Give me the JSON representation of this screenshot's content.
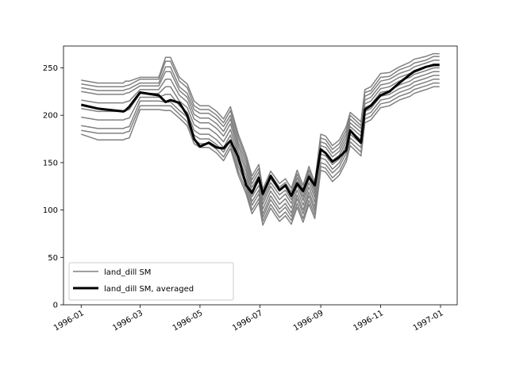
{
  "chart_data": {
    "type": "line",
    "title": "",
    "xlabel": "",
    "ylabel": "",
    "xlim": [
      "1995-12-14",
      "1997-01-18"
    ],
    "ylim": [
      0,
      273
    ],
    "grid": false,
    "legend_position": "lower-left",
    "x_ticks": [
      "1996-01",
      "1996-03",
      "1996-05",
      "1996-07",
      "1996-09",
      "1996-11",
      "1997-01"
    ],
    "y_ticks": [
      "0",
      "50",
      "100",
      "150",
      "200",
      "250"
    ],
    "member_color": "#808080",
    "average_color": "#000000",
    "x": [
      "1996-01-01",
      "1996-01-18",
      "1996-02-13",
      "1996-02-15",
      "1996-02-19",
      "1996-03-01",
      "1996-03-20",
      "1996-03-27",
      "1996-04-01",
      "1996-04-10",
      "1996-04-18",
      "1996-04-25",
      "1996-05-01",
      "1996-05-10",
      "1996-05-18",
      "1996-05-25",
      "1996-06-01",
      "1996-06-09",
      "1996-06-17",
      "1996-06-23",
      "1996-06-30",
      "1996-07-04",
      "1996-07-12",
      "1996-07-21",
      "1996-07-27",
      "1996-08-02",
      "1996-08-08",
      "1996-08-14",
      "1996-08-20",
      "1996-08-26",
      "1996-09-01",
      "1996-09-06",
      "1996-09-13",
      "1996-09-20",
      "1996-09-27",
      "1996-10-01",
      "1996-10-12",
      "1996-10-16",
      "1996-10-22",
      "1996-11-01",
      "1996-11-10",
      "1996-11-20",
      "1996-12-01",
      "1996-12-05",
      "1996-12-17",
      "1996-12-25",
      "1996-12-31"
    ],
    "series": [
      {
        "name": "land_dill SM",
        "values": [
          237,
          234,
          234,
          236,
          236,
          240,
          240,
          261,
          261,
          240,
          233,
          215,
          210,
          210,
          204,
          196,
          209,
          180,
          158,
          136,
          148,
          122,
          141,
          128,
          133,
          123,
          142,
          126,
          146,
          129,
          180,
          178,
          168,
          174,
          188,
          203,
          193,
          227,
          230,
          244,
          245,
          251,
          256,
          259,
          262,
          265,
          265
        ]
      },
      {
        "name": "",
        "values": [
          233,
          230,
          230,
          231,
          232,
          238,
          238,
          257,
          257,
          236,
          229,
          210,
          206,
          206,
          200,
          192,
          205,
          176,
          154,
          132,
          144,
          118,
          137,
          124,
          129,
          119,
          138,
          122,
          142,
          125,
          176,
          174,
          164,
          170,
          184,
          200,
          189,
          224,
          226,
          240,
          241,
          248,
          252,
          255,
          258,
          262,
          262
        ]
      },
      {
        "name": "",
        "values": [
          229,
          226,
          226,
          227,
          228,
          234,
          234,
          251,
          251,
          230,
          223,
          206,
          202,
          202,
          196,
          188,
          200,
          171,
          150,
          128,
          140,
          114,
          133,
          120,
          125,
          115,
          134,
          118,
          138,
          121,
          172,
          170,
          160,
          166,
          180,
          196,
          186,
          220,
          223,
          236,
          238,
          244,
          248,
          251,
          255,
          258,
          258
        ]
      },
      {
        "name": "",
        "values": [
          225,
          222,
          222,
          223,
          224,
          231,
          231,
          246,
          246,
          226,
          219,
          201,
          197,
          197,
          191,
          183,
          196,
          167,
          145,
          124,
          136,
          110,
          129,
          116,
          121,
          111,
          130,
          114,
          134,
          117,
          168,
          166,
          156,
          162,
          176,
          192,
          182,
          216,
          219,
          232,
          234,
          240,
          244,
          247,
          251,
          254,
          254
        ]
      },
      {
        "name": "",
        "values": [
          216,
          213,
          213,
          214,
          215,
          227,
          227,
          238,
          238,
          221,
          214,
          196,
          192,
          192,
          186,
          178,
          191,
          162,
          141,
          119,
          131,
          106,
          125,
          111,
          117,
          107,
          126,
          110,
          129,
          113,
          163,
          161,
          152,
          158,
          172,
          188,
          178,
          212,
          215,
          228,
          230,
          236,
          240,
          243,
          247,
          250,
          250
        ]
      },
      {
        "name": "",
        "values": [
          207,
          204,
          204,
          205,
          206,
          223,
          223,
          230,
          230,
          215,
          208,
          190,
          186,
          186,
          180,
          172,
          185,
          157,
          136,
          114,
          126,
          101,
          120,
          106,
          112,
          102,
          121,
          105,
          124,
          108,
          159,
          157,
          148,
          154,
          168,
          184,
          174,
          208,
          211,
          224,
          226,
          232,
          236,
          239,
          243,
          246,
          246
        ]
      },
      {
        "name": "",
        "values": [
          198,
          195,
          195,
          196,
          197,
          219,
          219,
          222,
          222,
          210,
          203,
          184,
          180,
          180,
          174,
          166,
          179,
          151,
          131,
          109,
          121,
          96,
          115,
          101,
          107,
          97,
          116,
          100,
          119,
          103,
          155,
          153,
          143,
          150,
          164,
          180,
          170,
          204,
          207,
          220,
          222,
          228,
          232,
          235,
          239,
          242,
          242
        ]
      },
      {
        "name": "",
        "values": [
          189,
          186,
          186,
          187,
          188,
          215,
          215,
          214,
          214,
          205,
          198,
          179,
          175,
          175,
          169,
          161,
          174,
          146,
          126,
          105,
          117,
          92,
          111,
          97,
          103,
          93,
          112,
          96,
          115,
          99,
          150,
          148,
          139,
          146,
          160,
          176,
          166,
          200,
          203,
          216,
          218,
          224,
          228,
          231,
          235,
          238,
          238
        ]
      },
      {
        "name": "",
        "values": [
          184,
          181,
          181,
          182,
          183,
          210,
          210,
          210,
          210,
          201,
          193,
          174,
          170,
          170,
          164,
          156,
          169,
          141,
          121,
          100,
          112,
          88,
          106,
          92,
          98,
          89,
          107,
          91,
          110,
          95,
          146,
          144,
          134,
          141,
          155,
          172,
          161,
          196,
          199,
          212,
          214,
          220,
          224,
          227,
          231,
          234,
          234
        ]
      },
      {
        "name": "",
        "values": [
          180,
          174,
          174,
          175,
          176,
          206,
          206,
          205,
          205,
          197,
          189,
          170,
          166,
          166,
          160,
          152,
          165,
          137,
          117,
          96,
          108,
          84,
          102,
          88,
          94,
          85,
          103,
          87,
          106,
          91,
          142,
          140,
          130,
          137,
          151,
          168,
          157,
          192,
          195,
          208,
          210,
          216,
          220,
          223,
          227,
          230,
          230
        ]
      },
      {
        "name": "land_dill SM, averaged",
        "values": [
          211,
          207,
          204,
          205,
          209,
          224,
          221,
          214,
          216,
          213,
          200,
          175,
          167,
          171,
          166,
          165,
          173,
          156,
          126,
          118,
          134,
          117,
          136,
          121,
          126,
          115,
          128,
          120,
          135,
          126,
          164,
          160,
          151,
          156,
          163,
          184,
          171,
          206,
          210,
          221,
          225,
          234,
          243,
          246,
          251,
          253,
          253
        ]
      }
    ],
    "legend": [
      "land_dill SM",
      "land_dill SM, averaged"
    ]
  }
}
